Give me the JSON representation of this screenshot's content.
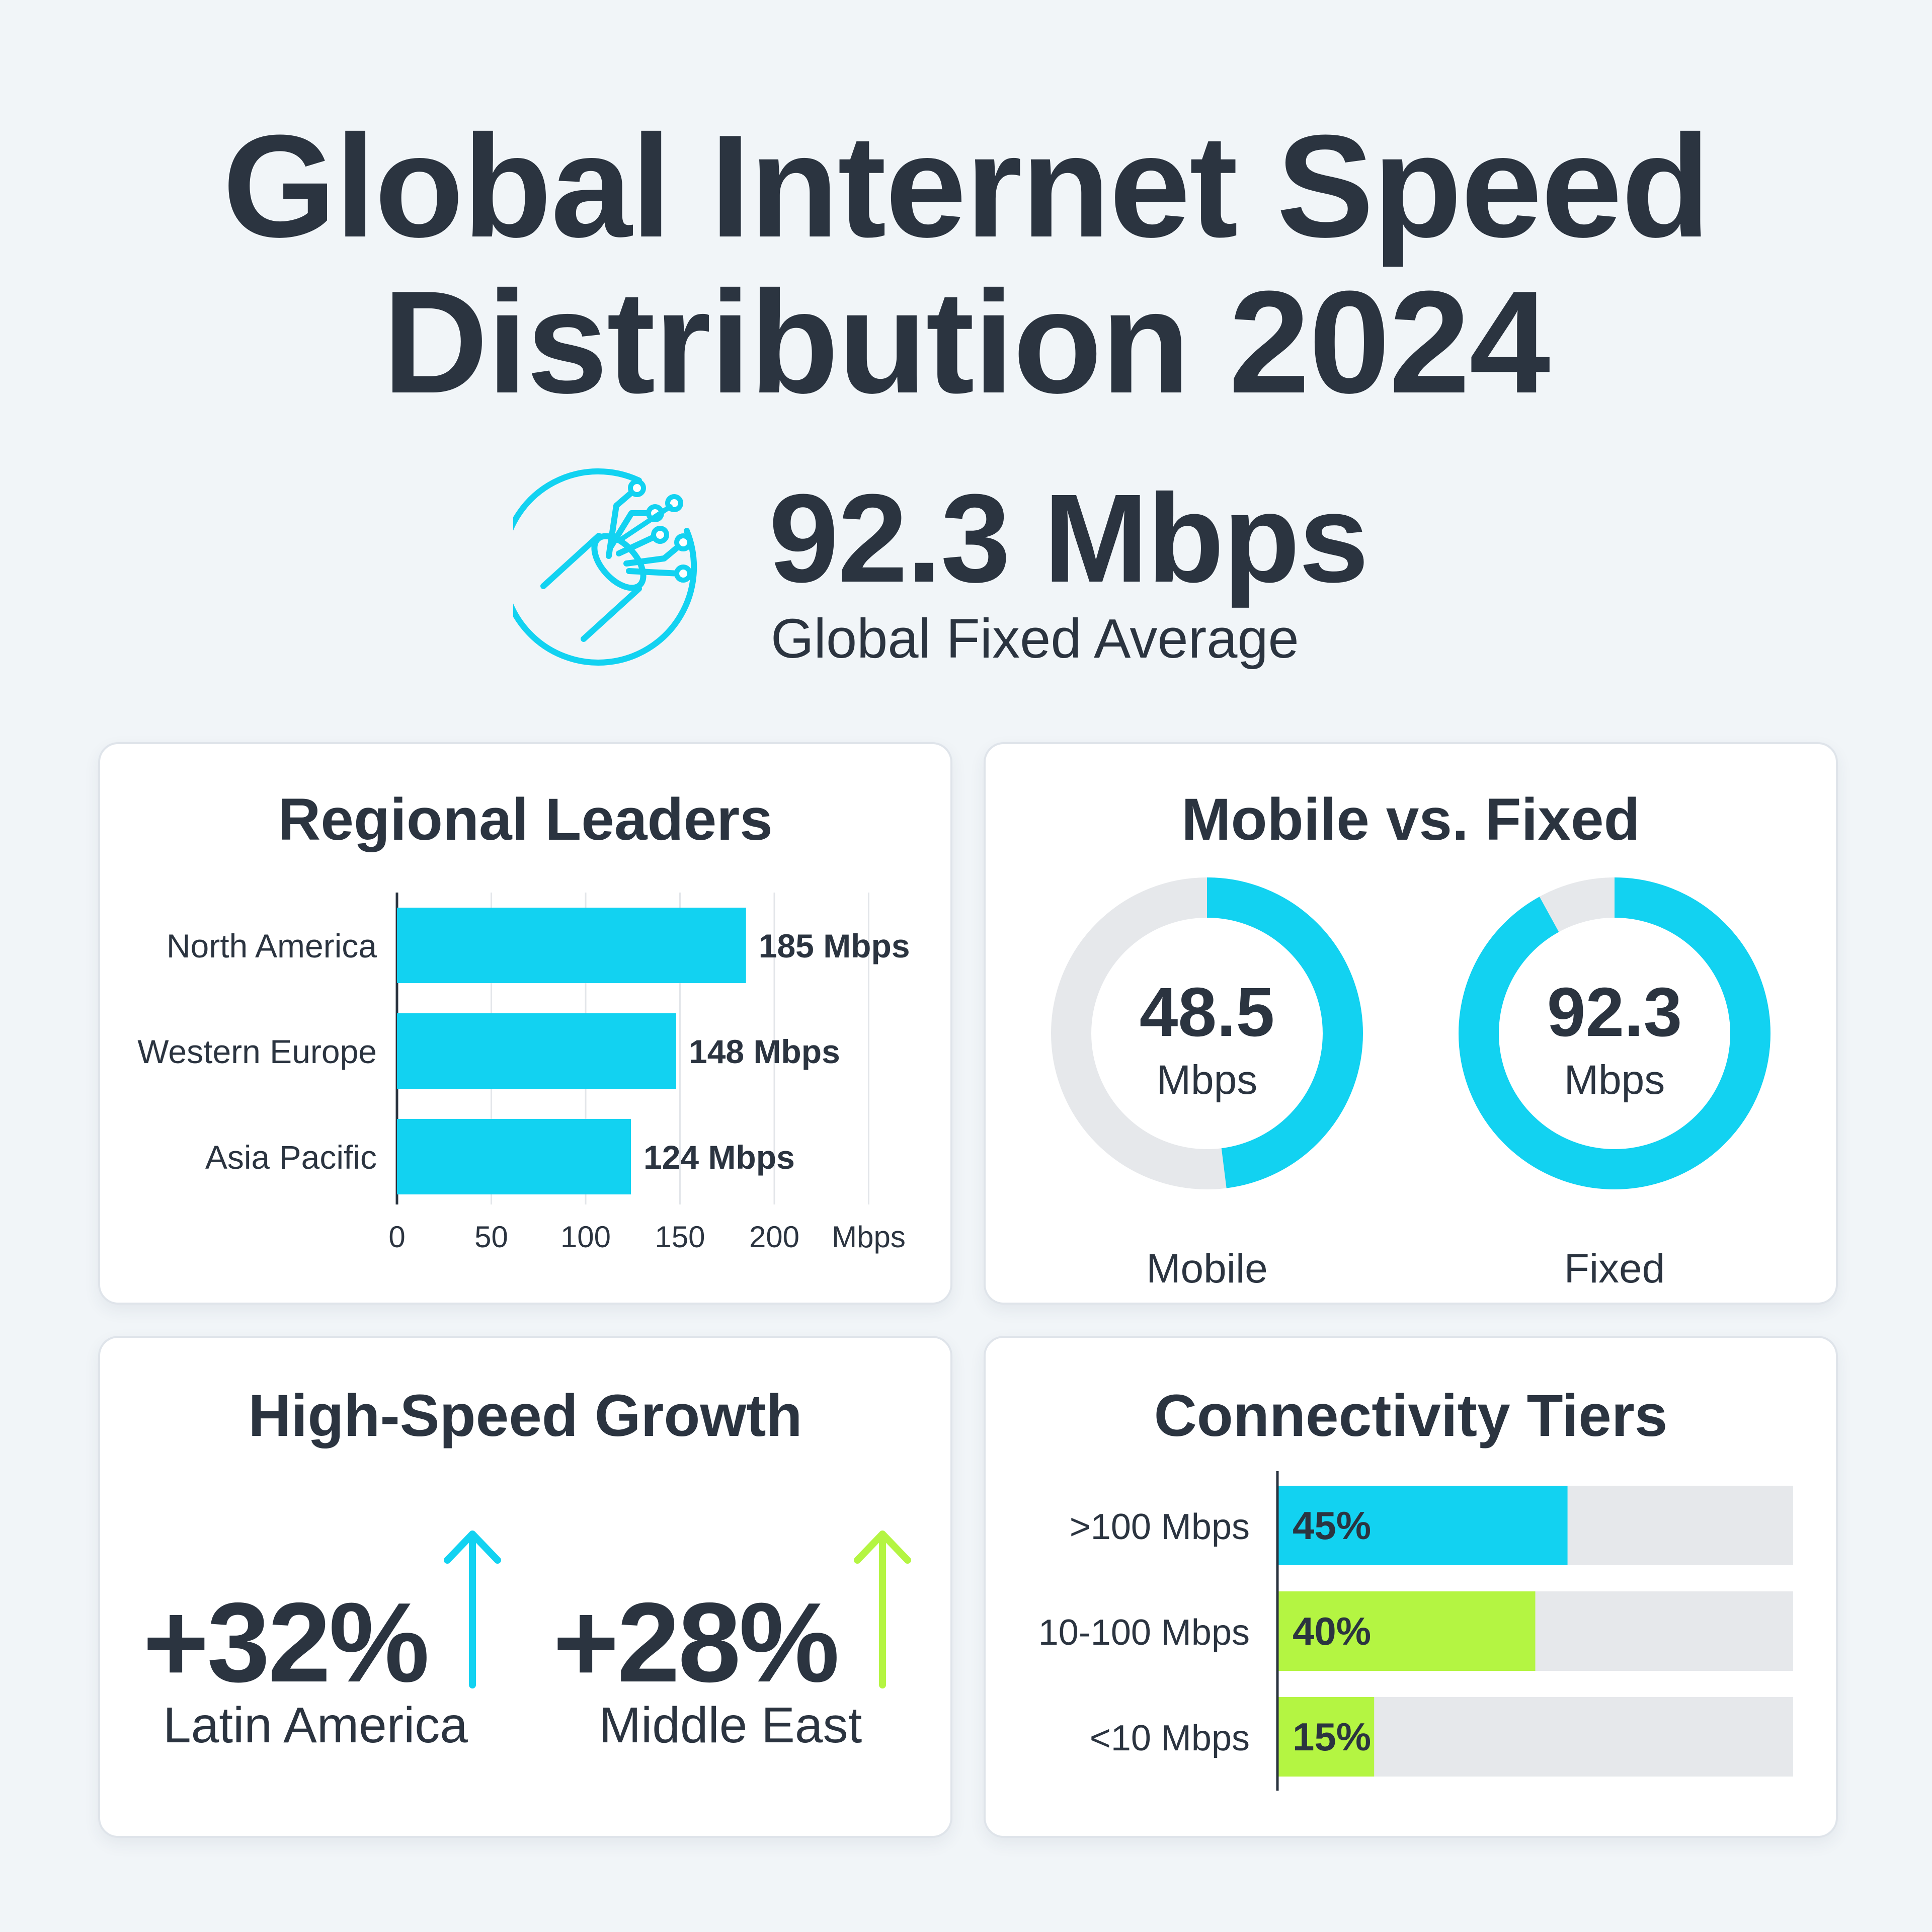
{
  "title": {
    "line1": "Global Internet Speed",
    "line2": "Distribution 2024"
  },
  "hero": {
    "icon": "fiber-optic-cable-icon",
    "value": "92.3 Mbps",
    "label": "Global Fixed Average"
  },
  "colors": {
    "cyan": "#12d2f1",
    "lime": "#b4f542",
    "track": "#e6e8eb",
    "text": "#2b3440",
    "grid": "#e3e6ea"
  },
  "chart_data": [
    {
      "type": "bar",
      "title": "Regional Leaders",
      "orientation": "horizontal",
      "categories": [
        "North America",
        "Western Europe",
        "Asia Pacific"
      ],
      "values": [
        185,
        148,
        124
      ],
      "value_labels": [
        "185 Mbps",
        "148 Mbps",
        "124 Mbps"
      ],
      "xlim": [
        0,
        250
      ],
      "xticks": [
        "0",
        "50",
        "100",
        "150",
        "200"
      ],
      "xlabel": "Mbps",
      "grid": true
    },
    {
      "type": "pie",
      "title": "Mobile vs. Fixed",
      "style": "donut",
      "series": [
        {
          "name": "Mobile",
          "value": 48.5,
          "fraction": 0.48,
          "value_label": "48.5",
          "unit": "Mbps"
        },
        {
          "name": "Fixed",
          "value": 92.3,
          "fraction": 0.92,
          "value_label": "92.3",
          "unit": "Mbps"
        }
      ]
    },
    {
      "type": "bar",
      "title": "Connectivity Tiers",
      "orientation": "horizontal",
      "categories": [
        ">100 Mbps",
        "10-100 Mbps",
        "<10 Mbps"
      ],
      "values": [
        45,
        40,
        15
      ],
      "value_labels": [
        "45%",
        "40%",
        "15%"
      ],
      "xlim": [
        0,
        100
      ],
      "bar_colors": [
        "cyan",
        "lime",
        "lime"
      ]
    }
  ],
  "growth": {
    "title": "High-Speed Growth",
    "items": [
      {
        "value": "+32%",
        "label": "Latin America",
        "arrow": "arrow-up-icon",
        "color": "cyan"
      },
      {
        "value": "+28%",
        "label": "Middle East",
        "arrow": "arrow-up-icon",
        "color": "lime"
      }
    ]
  }
}
